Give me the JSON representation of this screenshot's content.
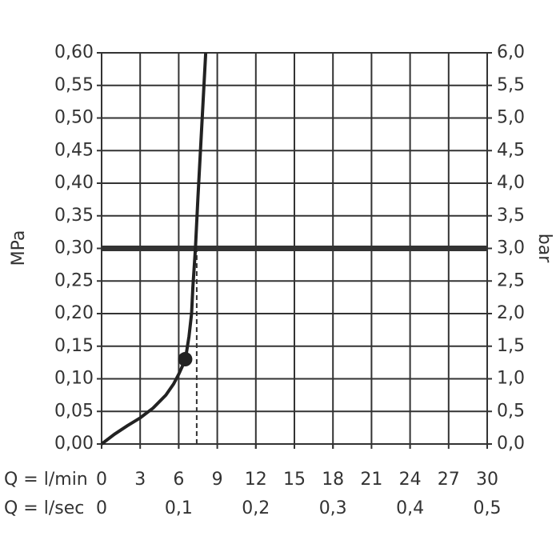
{
  "chart_data": {
    "type": "line",
    "x_label": "Q = l/min",
    "x2_label": "Q = l/sec",
    "y_label": "MPa",
    "y2_label": "bar",
    "x": [
      0,
      1,
      2,
      3,
      4,
      5,
      5.6,
      6,
      6.3,
      6.6,
      6.8,
      7,
      7.1,
      7.3,
      7.5,
      7.8,
      8.1
    ],
    "values": [
      0,
      0.015,
      0.028,
      0.04,
      0.055,
      0.075,
      0.092,
      0.107,
      0.12,
      0.14,
      0.165,
      0.2,
      0.24,
      0.3,
      0.38,
      0.49,
      0.6
    ],
    "color": "#222222",
    "marker": {
      "x": 6.5,
      "y": 0.13
    },
    "reference_y": 0.3,
    "dashed_x": 7.4,
    "xlim": [
      0,
      30
    ],
    "xticks": [
      0,
      3,
      6,
      9,
      12,
      15,
      18,
      21,
      24,
      27,
      30
    ],
    "x2lim": [
      0,
      0.5
    ],
    "x2ticks": [
      0,
      {
        "value": 0.1,
        "label": "0,1"
      },
      {
        "value": 0.2,
        "label": "0,2"
      },
      {
        "value": 0.3,
        "label": "0,3"
      },
      {
        "value": 0.4,
        "label": "0,4"
      },
      {
        "value": 0.5,
        "label": "0,5"
      }
    ],
    "ylim": [
      0,
      0.6
    ],
    "yticks": [
      {
        "value": 0,
        "label": "0,00"
      },
      {
        "value": 0.05,
        "label": "0,05"
      },
      {
        "value": 0.1,
        "label": "0,10"
      },
      {
        "value": 0.15,
        "label": "0,15"
      },
      {
        "value": 0.2,
        "label": "0,20"
      },
      {
        "value": 0.25,
        "label": "0,25"
      },
      {
        "value": 0.3,
        "label": "0,30"
      },
      {
        "value": 0.35,
        "label": "0,35"
      },
      {
        "value": 0.4,
        "label": "0,40"
      },
      {
        "value": 0.45,
        "label": "0,45"
      },
      {
        "value": 0.5,
        "label": "0,50"
      },
      {
        "value": 0.55,
        "label": "0,55"
      },
      {
        "value": 0.6,
        "label": "0,60"
      }
    ],
    "y2lim": [
      0,
      6
    ],
    "y2ticks": [
      {
        "value": 0,
        "label": "0,0"
      },
      {
        "value": 0.5,
        "label": "0,5"
      },
      {
        "value": 1,
        "label": "1,0"
      },
      {
        "value": 1.5,
        "label": "1,5"
      },
      {
        "value": 2,
        "label": "2,0"
      },
      {
        "value": 2.5,
        "label": "2,5"
      },
      {
        "value": 3,
        "label": "3,0"
      },
      {
        "value": 3.5,
        "label": "3,5"
      },
      {
        "value": 4,
        "label": "4,0"
      },
      {
        "value": 4.5,
        "label": "4,5"
      },
      {
        "value": 5,
        "label": "5,0"
      },
      {
        "value": 5.5,
        "label": "5,5"
      },
      {
        "value": 6,
        "label": "6,0"
      }
    ],
    "grid": true
  }
}
